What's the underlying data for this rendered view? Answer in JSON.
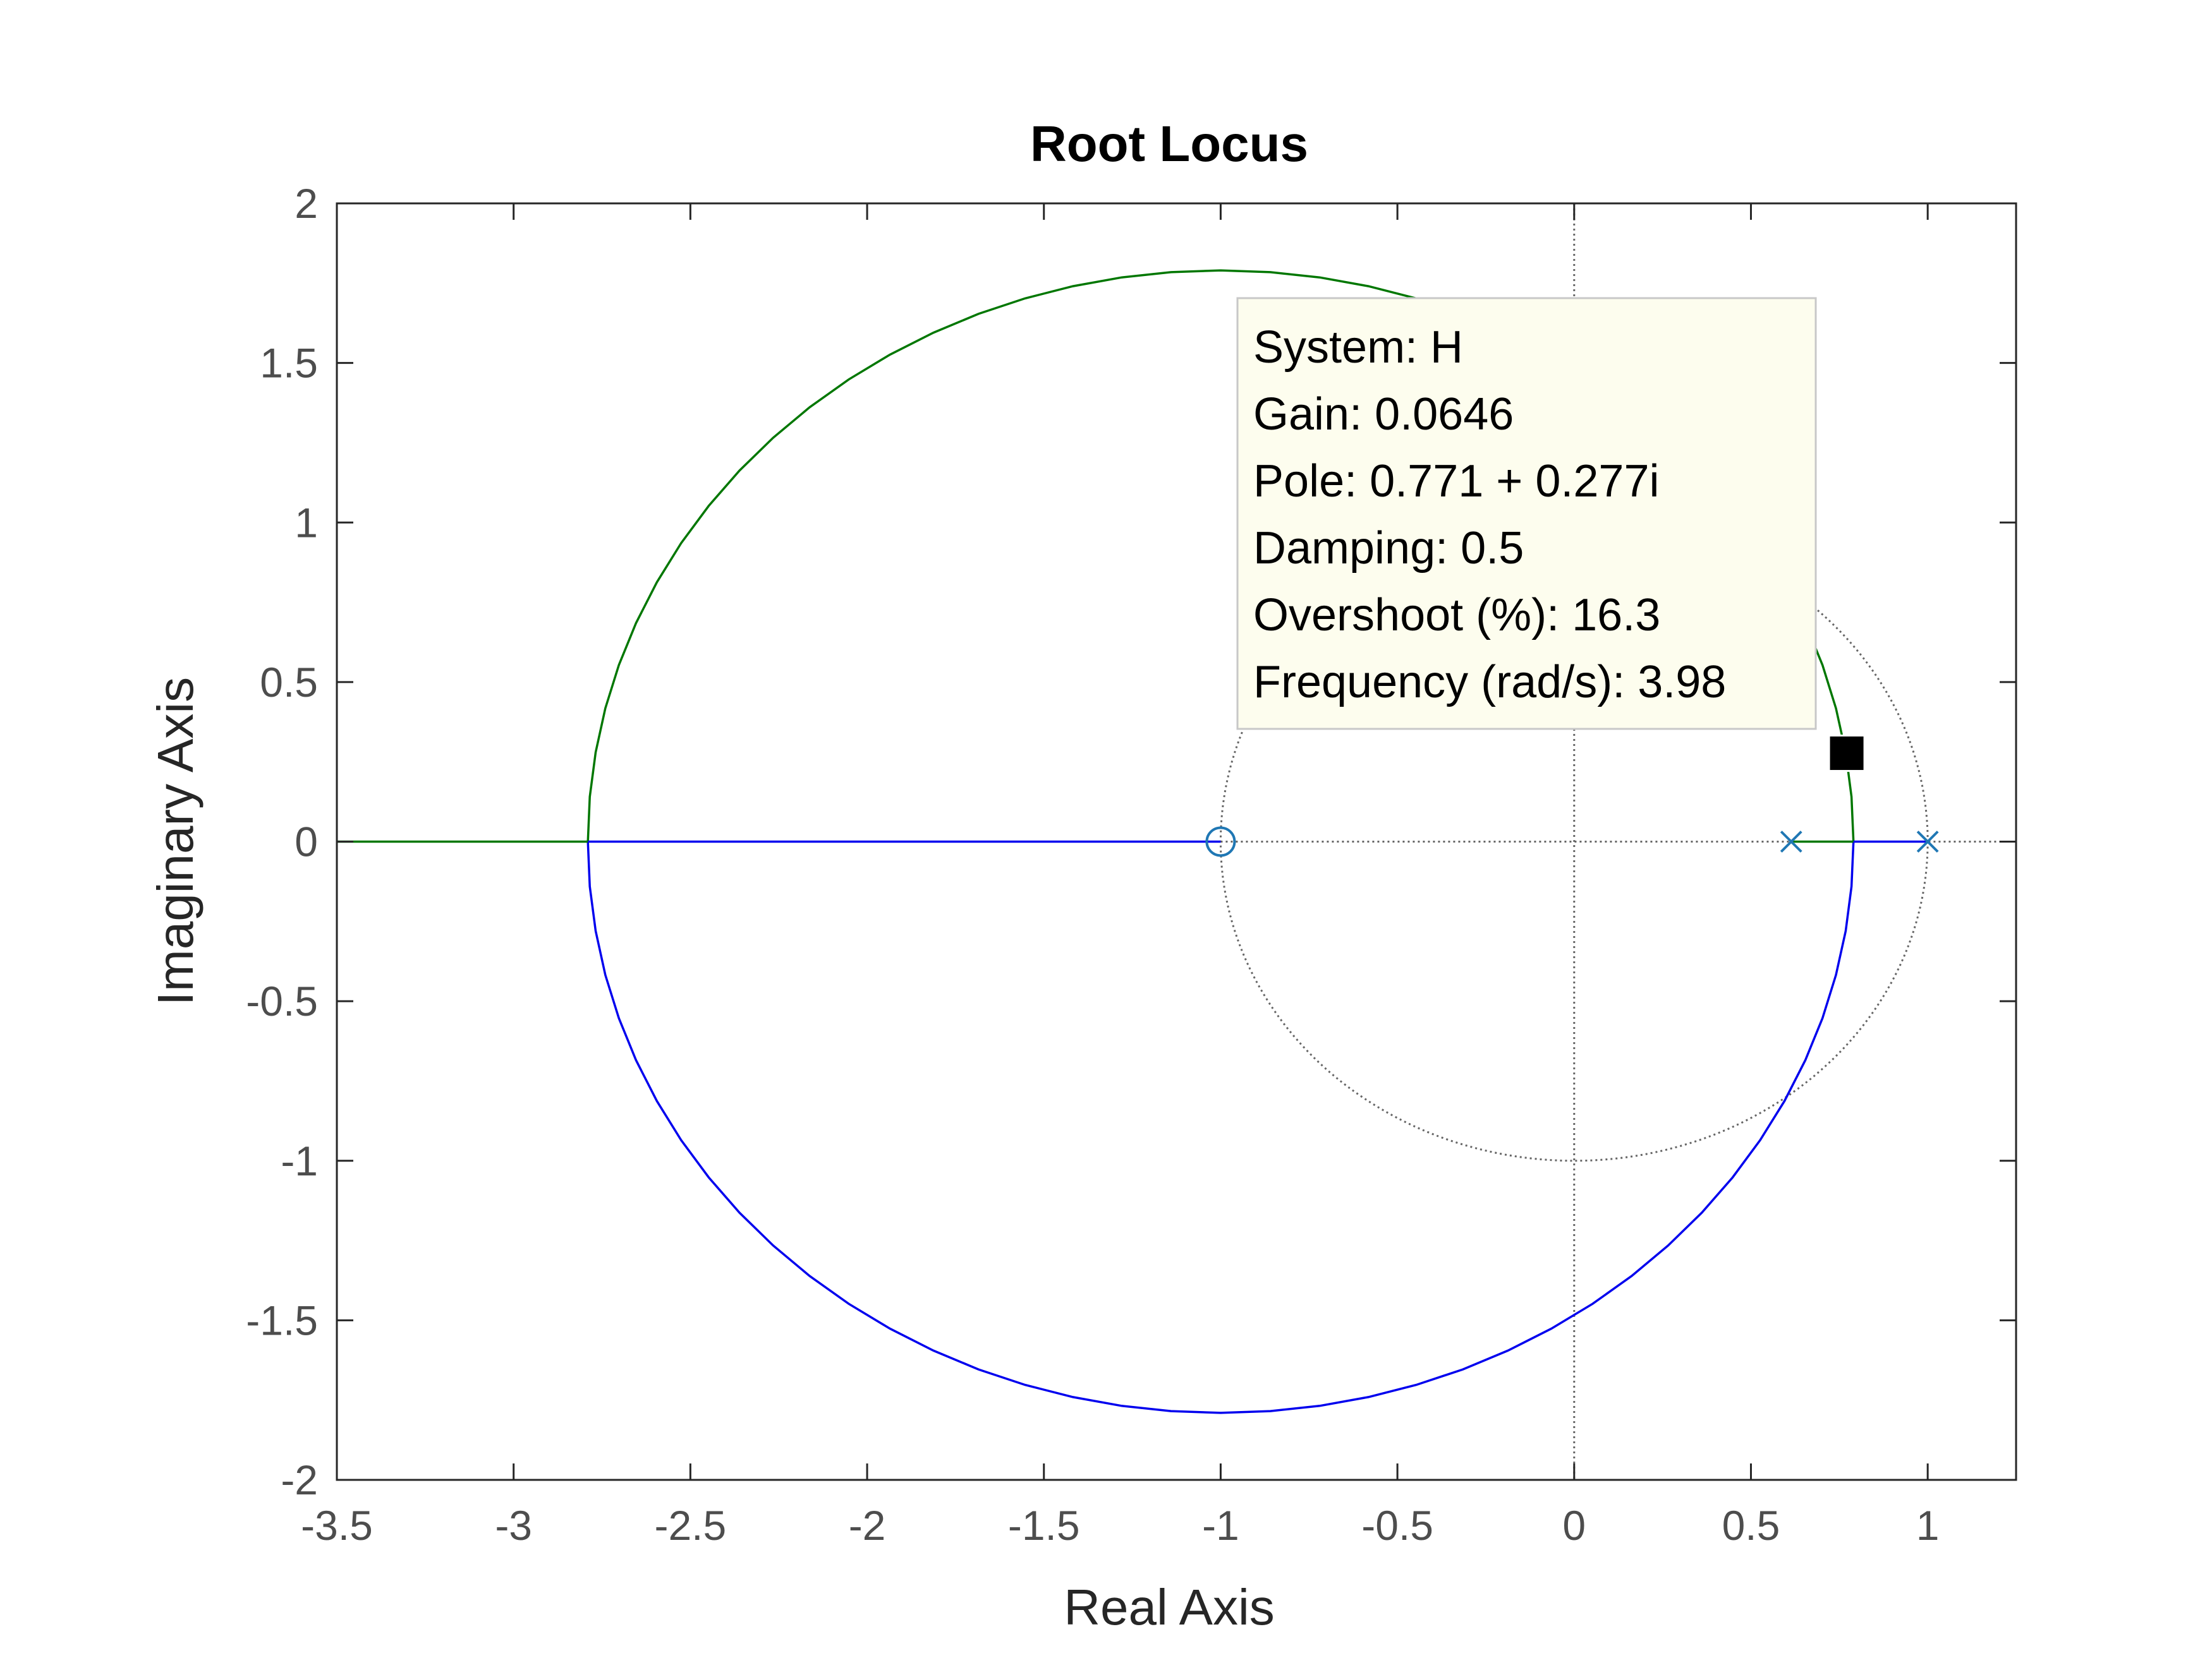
{
  "chart_data": {
    "type": "line",
    "title": "Root Locus",
    "xlabel": "Real Axis",
    "ylabel": "Imaginary Axis",
    "xlim": [
      -3.5,
      1.25
    ],
    "ylim": [
      -2,
      2
    ],
    "xticks": [
      "-3.5",
      "-3",
      "-2.5",
      "-2",
      "-1.5",
      "-1",
      "-0.5",
      "0",
      "0.5",
      "1"
    ],
    "yticks": [
      "-2",
      "-1.5",
      "-1",
      "-0.5",
      "0",
      "0.5",
      "1",
      "1.5",
      "2"
    ],
    "grid": false,
    "colors": {
      "locus_upper": "#007700",
      "locus_lower": "#0000ee",
      "markers": "#1f77b4",
      "damping_circle": "#666666"
    },
    "poles": [
      {
        "x": 0.614,
        "y": 0
      },
      {
        "x": 1.0,
        "y": 0
      }
    ],
    "zeros": [
      {
        "x": -1.0,
        "y": 0
      }
    ],
    "breakaway_points": [
      0.79,
      -2.79
    ],
    "locus_circle": {
      "center_x": -1.0,
      "radius": 1.79
    },
    "damping_circle": {
      "center_x": 0.0,
      "radius": 1.0,
      "center_y": 0.0
    },
    "selected_point": {
      "x": 0.771,
      "y": 0.277
    },
    "datatip": {
      "lines": [
        "System: H",
        "Gain: 0.0646",
        "Pole: 0.771 + 0.277i",
        "Damping: 0.5",
        "Overshoot (%): 16.3",
        "Frequency (rad/s): 3.98"
      ]
    }
  }
}
